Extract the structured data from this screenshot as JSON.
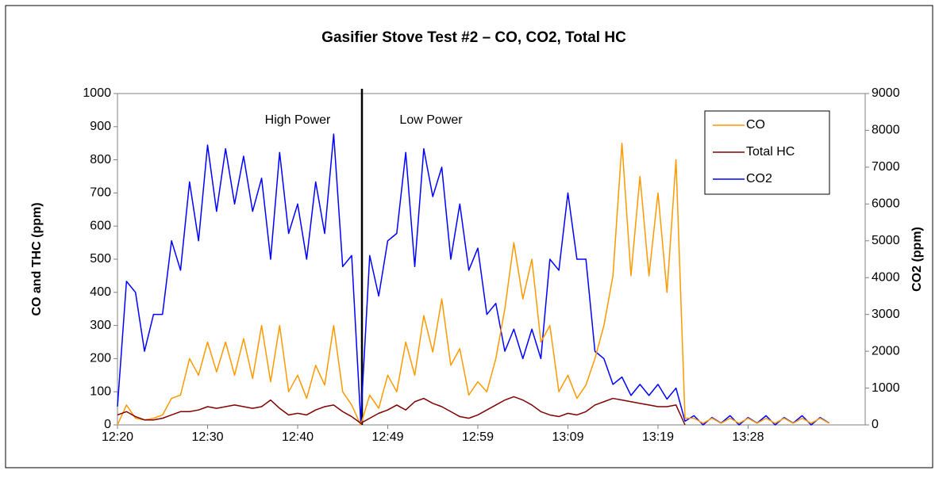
{
  "chart_data": {
    "type": "line",
    "title": "Gasifier Stove Test #2 – CO, CO2, Total HC",
    "y_label": "CO and THC (ppm)",
    "y2_label": "CO2 (ppm)",
    "annotations": [
      "High Power",
      "Low Power"
    ],
    "categories": [
      "12:20",
      null,
      null,
      null,
      null,
      null,
      null,
      null,
      null,
      null,
      "12:30",
      null,
      null,
      null,
      null,
      null,
      null,
      null,
      null,
      null,
      "12:40",
      null,
      null,
      null,
      null,
      null,
      null,
      null,
      null,
      null,
      "12:49",
      null,
      null,
      null,
      null,
      null,
      null,
      null,
      null,
      null,
      "12:59",
      null,
      null,
      null,
      null,
      null,
      null,
      null,
      null,
      null,
      "13:09",
      null,
      null,
      null,
      null,
      null,
      null,
      null,
      null,
      null,
      "13:19",
      null,
      null,
      null,
      null,
      null,
      null,
      null,
      null,
      null,
      "13:28",
      null,
      null,
      null,
      null,
      null,
      null,
      null,
      null,
      null,
      null,
      null,
      null,
      null
    ],
    "series": [
      {
        "name": "CO",
        "color": "#ff9900",
        "values": [
          0,
          60,
          20,
          15,
          20,
          30,
          80,
          90,
          200,
          150,
          250,
          160,
          250,
          150,
          260,
          140,
          300,
          130,
          300,
          100,
          150,
          80,
          180,
          120,
          300,
          100,
          60,
          0,
          90,
          50,
          150,
          100,
          250,
          150,
          330,
          220,
          380,
          180,
          230,
          90,
          130,
          100,
          200,
          350,
          550,
          380,
          500,
          250,
          300,
          100,
          150,
          80,
          120,
          200,
          300,
          450,
          850,
          450,
          750,
          450,
          700,
          400,
          800,
          20,
          20,
          5,
          20,
          5,
          20,
          5,
          20,
          5,
          20,
          5,
          20,
          5,
          20,
          5,
          20,
          5,
          null,
          null,
          null,
          null
        ]
      },
      {
        "name": "Total HC",
        "color": "#800000",
        "values": [
          30,
          40,
          25,
          15,
          15,
          20,
          30,
          40,
          40,
          45,
          55,
          50,
          55,
          60,
          55,
          50,
          55,
          75,
          50,
          30,
          35,
          30,
          45,
          55,
          60,
          40,
          25,
          5,
          20,
          35,
          45,
          60,
          45,
          70,
          80,
          65,
          55,
          40,
          25,
          20,
          30,
          45,
          60,
          75,
          85,
          75,
          60,
          40,
          30,
          25,
          35,
          30,
          40,
          60,
          70,
          80,
          75,
          70,
          65,
          60,
          55,
          55,
          60,
          0,
          null,
          null,
          null,
          null,
          null,
          null,
          null,
          null,
          null,
          null,
          null,
          null,
          null,
          null,
          null,
          null,
          null,
          null,
          null,
          null
        ]
      },
      {
        "name": "CO2",
        "color": "#0000ff",
        "axis": "y2",
        "values": [
          500,
          3900,
          3600,
          2000,
          3000,
          3000,
          5000,
          4200,
          6600,
          5000,
          7600,
          5800,
          7500,
          6000,
          7300,
          5800,
          6700,
          4500,
          7400,
          5200,
          6000,
          4500,
          6600,
          5200,
          7900,
          4300,
          4600,
          100,
          4600,
          3500,
          5000,
          5200,
          7400,
          4300,
          7500,
          6200,
          7000,
          4500,
          6000,
          4200,
          4800,
          3000,
          3300,
          2000,
          2600,
          1800,
          2600,
          1800,
          4500,
          4200,
          6300,
          4500,
          4500,
          2000,
          1800,
          1100,
          1300,
          800,
          1100,
          800,
          1100,
          700,
          1000,
          100,
          250,
          0,
          200,
          50,
          250,
          0,
          200,
          50,
          250,
          0,
          200,
          50,
          250,
          0,
          200,
          50,
          null,
          null,
          null,
          null
        ]
      }
    ],
    "ylim": [
      0,
      1000
    ],
    "yticks": [
      0,
      100,
      200,
      300,
      400,
      500,
      600,
      700,
      800,
      900,
      1000
    ],
    "y2lim": [
      0,
      9000
    ],
    "y2ticks": [
      0,
      1000,
      2000,
      3000,
      4000,
      5000,
      6000,
      7000,
      8000,
      9000
    ],
    "grid": false,
    "legend": "upper right"
  }
}
